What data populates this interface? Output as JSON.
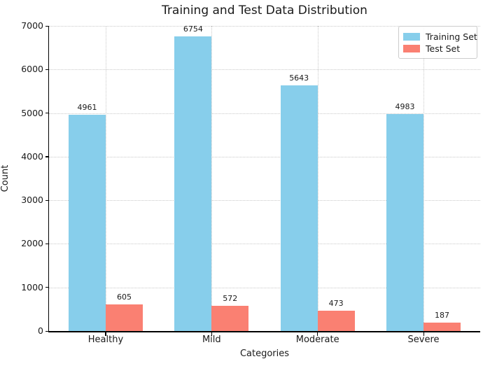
{
  "chart_data": {
    "type": "bar",
    "title": "Training and Test Data Distribution",
    "xlabel": "Categories",
    "ylabel": "Count",
    "categories": [
      "Healthy",
      "Mild",
      "Moderate",
      "Severe"
    ],
    "series": [
      {
        "name": "Training Set",
        "color": "#87CEEB",
        "values": [
          4961,
          6754,
          5643,
          4983
        ]
      },
      {
        "name": "Test Set",
        "color": "#FA8072",
        "values": [
          605,
          572,
          473,
          187
        ]
      }
    ],
    "ylim": [
      0,
      7000
    ],
    "yticks": [
      0,
      1000,
      2000,
      3000,
      4000,
      5000,
      6000,
      7000
    ],
    "bar_width": 0.35,
    "grid": "dotted",
    "legend_position": "upper right",
    "value_labels_shown": true
  }
}
